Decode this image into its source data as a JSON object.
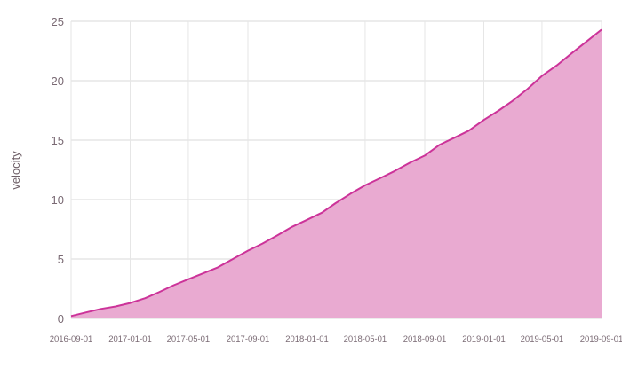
{
  "chart_data": {
    "type": "area",
    "title": "",
    "xlabel": "",
    "ylabel": "velocity",
    "ylim": [
      0,
      25
    ],
    "xlim": [
      "2016-09-01",
      "2019-09-01"
    ],
    "grid": true,
    "legend": "none",
    "yticks": [
      0,
      5,
      10,
      15,
      20,
      25
    ],
    "xticks": [
      "2016-09-01",
      "2017-01-01",
      "2017-05-01",
      "2017-09-01",
      "2018-01-01",
      "2018-05-01",
      "2018-09-01",
      "2019-01-01",
      "2019-05-01",
      "2019-09-01"
    ],
    "colors": {
      "line": "#cc3399",
      "fill": "#e9aad1",
      "grid": "#d9d9d9"
    },
    "series": [
      {
        "x": [
          "2016-09-01",
          "2016-10-01",
          "2016-11-01",
          "2016-12-01",
          "2017-01-01",
          "2017-02-01",
          "2017-03-01",
          "2017-04-01",
          "2017-05-01",
          "2017-06-01",
          "2017-07-01",
          "2017-08-01",
          "2017-09-01",
          "2017-10-01",
          "2017-11-01",
          "2017-12-01",
          "2018-01-01",
          "2018-02-01",
          "2018-03-01",
          "2018-04-01",
          "2018-05-01",
          "2018-06-01",
          "2018-07-01",
          "2018-08-01",
          "2018-09-01",
          "2018-10-01",
          "2018-11-01",
          "2018-12-01",
          "2019-01-01",
          "2019-02-01",
          "2019-03-01",
          "2019-04-01",
          "2019-05-01",
          "2019-06-01",
          "2019-07-01",
          "2019-08-01",
          "2019-09-01"
        ],
        "values": [
          0.2,
          0.5,
          0.8,
          1.0,
          1.3,
          1.7,
          2.2,
          2.8,
          3.3,
          3.8,
          4.3,
          5.0,
          5.7,
          6.3,
          7.0,
          7.7,
          8.3,
          8.9,
          9.7,
          10.5,
          11.2,
          11.8,
          12.4,
          13.1,
          13.7,
          14.6,
          15.2,
          15.8,
          16.7,
          17.5,
          18.3,
          19.3,
          20.4,
          21.3,
          22.3,
          23.3,
          24.3
        ]
      }
    ]
  }
}
